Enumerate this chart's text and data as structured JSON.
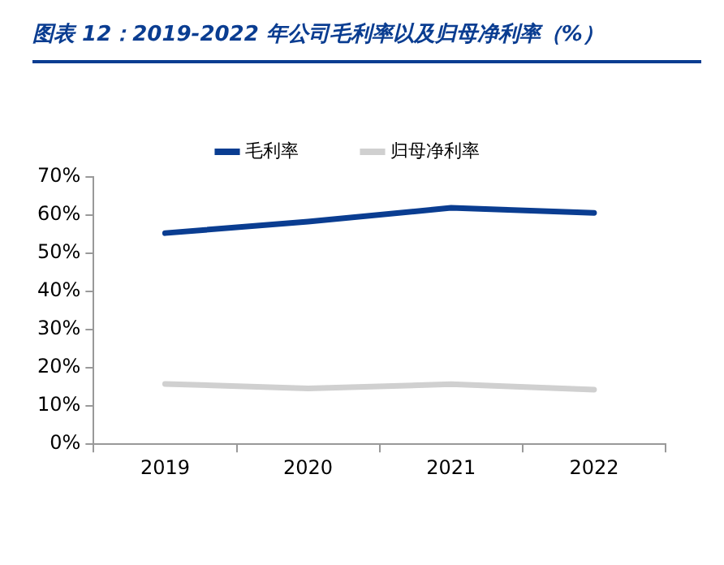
{
  "chart_data": {
    "type": "line",
    "title": "图表 12：2019-2022 年公司毛利率以及归母净利率（%）",
    "categories": [
      "2019",
      "2020",
      "2021",
      "2022"
    ],
    "series": [
      {
        "name": "毛利率",
        "color": "#0a3d91",
        "values": [
          55.3,
          58.3,
          61.9,
          60.6
        ]
      },
      {
        "name": "归母净利率",
        "color": "#d0d0d0",
        "values": [
          15.8,
          14.6,
          15.7,
          14.3
        ]
      }
    ],
    "ylim": [
      0,
      70
    ],
    "yticks": [
      {
        "value": 0,
        "label": "0%"
      },
      {
        "value": 10,
        "label": "10%"
      },
      {
        "value": 20,
        "label": "20%"
      },
      {
        "value": 30,
        "label": "30%"
      },
      {
        "value": 40,
        "label": "40%"
      },
      {
        "value": 50,
        "label": "50%"
      },
      {
        "value": 60,
        "label": "60%"
      },
      {
        "value": 70,
        "label": "70%"
      }
    ],
    "grid": false,
    "legend": "top",
    "marker": "none",
    "line_style": "solid"
  }
}
